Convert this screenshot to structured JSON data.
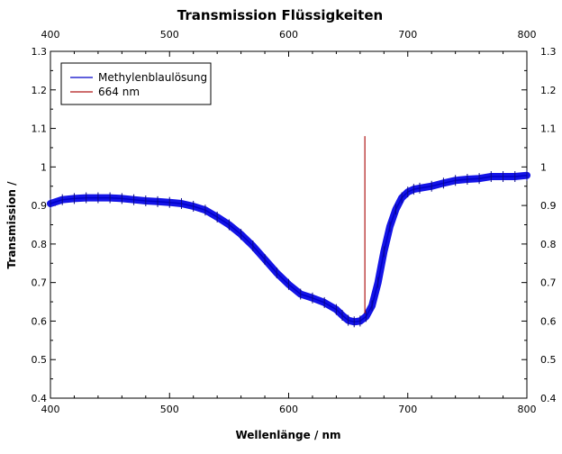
{
  "chart_data": {
    "type": "line",
    "title": "Transmission Flüssigkeiten",
    "xlabel": "Wellenlänge / nm",
    "ylabel": "Transmission /",
    "xlim": [
      400,
      800
    ],
    "ylim": [
      0.4,
      1.3
    ],
    "x_ticks": [
      400,
      500,
      600,
      700,
      800
    ],
    "y_ticks": [
      0.4,
      0.5,
      0.6,
      0.7,
      0.8,
      0.9,
      1,
      1.1,
      1.2,
      1.3
    ],
    "x_tick_labels": [
      "400",
      "500",
      "600",
      "700",
      "800"
    ],
    "y_tick_labels": [
      "0.4",
      "0.5",
      "0.6",
      "0.7",
      "0.8",
      "0.9",
      "1",
      "1.1",
      "1.2",
      "1.3"
    ],
    "mirrored_axes": true,
    "grid": false,
    "legend_position": "top-left",
    "series": [
      {
        "name": "Methylenblaulösung",
        "color": "#1414e6",
        "error_bars": true,
        "x": [
          400,
          410,
          420,
          430,
          440,
          450,
          460,
          470,
          480,
          490,
          500,
          510,
          520,
          530,
          540,
          550,
          560,
          570,
          580,
          590,
          600,
          610,
          620,
          630,
          640,
          645,
          650,
          655,
          660,
          665,
          670,
          675,
          680,
          685,
          690,
          695,
          700,
          705,
          710,
          720,
          730,
          740,
          750,
          760,
          770,
          780,
          790,
          800
        ],
        "y": [
          0.905,
          0.915,
          0.918,
          0.92,
          0.92,
          0.92,
          0.918,
          0.915,
          0.912,
          0.91,
          0.908,
          0.905,
          0.898,
          0.888,
          0.87,
          0.85,
          0.825,
          0.795,
          0.76,
          0.725,
          0.695,
          0.67,
          0.66,
          0.648,
          0.63,
          0.615,
          0.602,
          0.598,
          0.6,
          0.612,
          0.64,
          0.7,
          0.78,
          0.845,
          0.89,
          0.92,
          0.935,
          0.942,
          0.945,
          0.95,
          0.958,
          0.965,
          0.968,
          0.97,
          0.975,
          0.975,
          0.975,
          0.978
        ]
      },
      {
        "name": "664 nm",
        "color": "#b01818",
        "x": [
          664,
          664
        ],
        "y": [
          0.62,
          1.08
        ]
      }
    ]
  }
}
